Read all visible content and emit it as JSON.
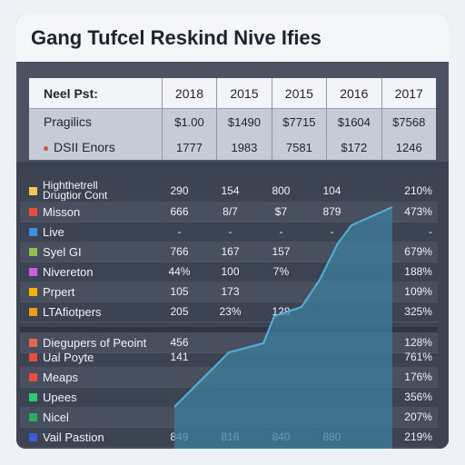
{
  "title": "Gang Tufcel Reskind Nive Ifies",
  "top_table": {
    "header_label": "Neel Pst:",
    "years": [
      "2018",
      "2015",
      "2015",
      "2016",
      "2017"
    ],
    "rows": [
      {
        "label": "Pragilics",
        "values": [
          "$1.00",
          "$1490",
          "$7715",
          "$1604",
          "$7568"
        ]
      },
      {
        "label": "DSII Enors",
        "values": [
          "1777",
          "1983",
          "7581",
          "$172",
          "1246"
        ]
      }
    ]
  },
  "lower_table": {
    "rows": [
      {
        "label": "Highthetrell\nDrugtior Cont",
        "color": "#f2c94c",
        "values": [
          "290",
          "154",
          "800",
          "104"
        ],
        "pct": "210%"
      },
      {
        "label": "Misson",
        "color": "#e74c3c",
        "values": [
          "666",
          "8/7",
          "$7",
          "879"
        ],
        "pct": "473%"
      },
      {
        "label": "Live",
        "color": "#3b8fe0",
        "values": [
          "-",
          "-",
          "-",
          "-"
        ],
        "pct": "-"
      },
      {
        "label": "Syel GI",
        "color": "#8bc34a",
        "values": [
          "766",
          "167",
          "157",
          ""
        ],
        "pct": "679%"
      },
      {
        "label": "Nivereton",
        "color": "#d05ce3",
        "values": [
          "44%",
          "100",
          "7%",
          ""
        ],
        "pct": "188%"
      },
      {
        "label": "Prpert",
        "color": "#f4b400",
        "values": [
          "105",
          "173",
          "",
          ""
        ],
        "pct": "109%"
      },
      {
        "label": "LTAfiotpers",
        "color": "#f39c12",
        "values": [
          "205",
          "23%",
          "128",
          ""
        ],
        "pct": "325%"
      },
      {
        "label": "Diegupers of Peoint",
        "color": "#e8654f",
        "values": [
          "456",
          "",
          "",
          ""
        ],
        "pct": "128%"
      },
      {
        "label": "Ual Poyte",
        "color": "#e74c3c",
        "values": [
          "141",
          "",
          "",
          ""
        ],
        "pct": "761%"
      },
      {
        "label": "Meaps",
        "color": "#e74c3c",
        "values": [
          "",
          "",
          "",
          ""
        ],
        "pct": "176%"
      },
      {
        "label": "Upees",
        "color": "#2ecc71",
        "values": [
          "",
          "",
          "",
          ""
        ],
        "pct": "356%"
      },
      {
        "label": "Nicel",
        "color": "#27ae60",
        "values": [
          "",
          "",
          "",
          ""
        ],
        "pct": "207%"
      },
      {
        "label": "Vail Pastion",
        "color": "#3b5bdb",
        "values": [
          "849",
          "816",
          "840",
          "880"
        ],
        "pct": "219%"
      }
    ]
  },
  "colors": {
    "area_fill": "#3f7e9c",
    "area_edge": "#4fb3e0"
  }
}
